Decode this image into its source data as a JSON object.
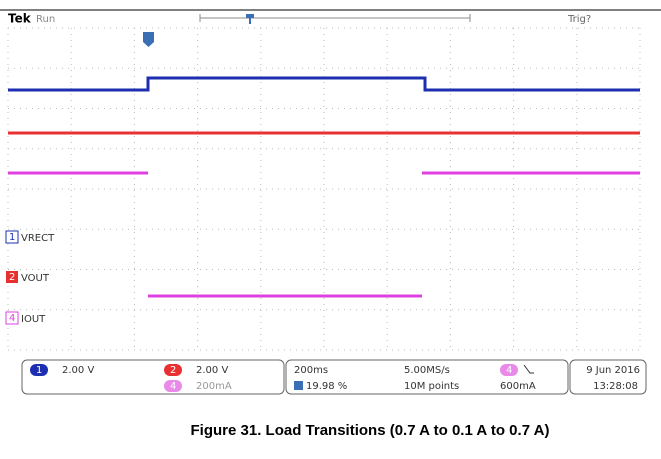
{
  "header": {
    "brand": "Tek",
    "status": "Run",
    "trigger": "Trig?"
  },
  "channels": [
    {
      "number": "1",
      "label": "VRECT",
      "scale": "2.00 V"
    },
    {
      "number": "2",
      "label": "VOUT",
      "scale": "2.00 V"
    },
    {
      "number": "4",
      "label": "IOUT",
      "scale": "200mA"
    }
  ],
  "status_bar": {
    "timebase": "200ms",
    "position": "19.98 %",
    "sample_rate": "5.00MS/s",
    "record_length": "10M points",
    "trigger_level": "600mA",
    "date": "9 Jun 2016",
    "time": "13:28:08"
  },
  "caption": "Figure 31. Load Transitions (0.7 A to 0.1 A to 0.7 A)"
}
